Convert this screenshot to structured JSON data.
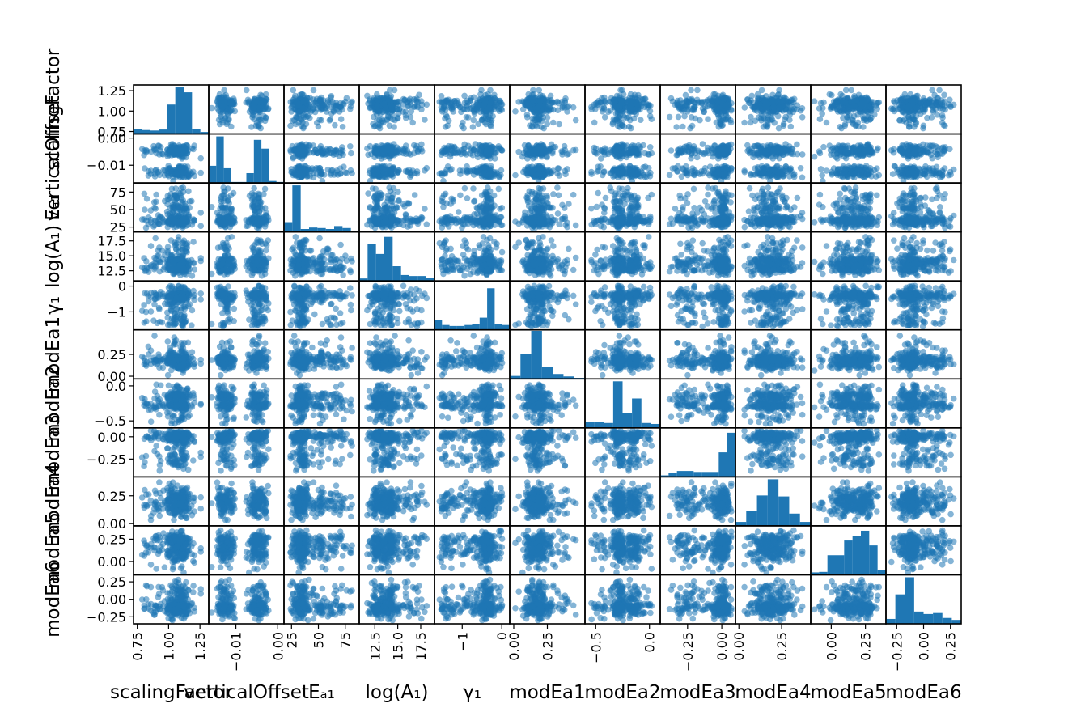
{
  "chart_data": {
    "type": "scatter-matrix",
    "diagonal": "histogram",
    "point_color": "#1f77b4",
    "point_alpha": 0.55,
    "grid": false,
    "legend": "none",
    "variables": [
      {
        "key": "scalingFactor",
        "label": "scalingFactor",
        "range": [
          0.72,
          1.32
        ],
        "ticks": [
          {
            "v": 0.75,
            "t": "0.75"
          },
          {
            "v": 1.0,
            "t": "1.00"
          },
          {
            "v": 1.25,
            "t": "1.25"
          }
        ],
        "hist": [
          0.1,
          0.08,
          0.07,
          0.09,
          0.6,
          0.95,
          0.85,
          0.1,
          0.04
        ]
      },
      {
        "key": "verticalOffset",
        "label": "verticalOffset",
        "range": [
          -0.0165,
          0.0015
        ],
        "ticks": [
          {
            "v": -0.01,
            "t": "−0.01"
          },
          {
            "v": 0.0,
            "t": "0.00"
          }
        ],
        "hist": [
          0.35,
          0.95,
          0.3,
          0.02,
          0.02,
          0.2,
          0.88,
          0.7,
          0.04,
          0.02
        ]
      },
      {
        "key": "Ea1",
        "label": "Eₐ₁",
        "range": [
          18,
          88
        ],
        "ticks": [
          {
            "v": 25,
            "t": "25"
          },
          {
            "v": 50,
            "t": "50"
          },
          {
            "v": 75,
            "t": "75"
          }
        ],
        "hist": [
          0.2,
          0.95,
          0.06,
          0.09,
          0.08,
          0.06,
          0.12,
          0.08,
          0.02
        ]
      },
      {
        "key": "logA1",
        "label": "log(A₁)",
        "range": [
          10.8,
          19.0
        ],
        "ticks": [
          {
            "v": 12.5,
            "t": "12.5"
          },
          {
            "v": 15.0,
            "t": "15.0"
          },
          {
            "v": 17.5,
            "t": "17.5"
          }
        ],
        "hist": [
          0.05,
          0.75,
          0.55,
          0.9,
          0.3,
          0.12,
          0.1,
          0.1,
          0.06
        ]
      },
      {
        "key": "gamma1",
        "label": "γ₁",
        "range": [
          -1.7,
          0.2
        ],
        "ticks": [
          {
            "v": -1,
            "t": "−1"
          },
          {
            "v": 0,
            "t": "0"
          }
        ],
        "hist": [
          0.2,
          0.1,
          0.08,
          0.08,
          0.1,
          0.12,
          0.25,
          0.85,
          0.12,
          0.1
        ]
      },
      {
        "key": "modEa1",
        "label": "modEa1",
        "range": [
          -0.03,
          0.53
        ],
        "ticks": [
          {
            "v": 0.0,
            "t": "0.00"
          },
          {
            "v": 0.25,
            "t": "0.25"
          }
        ],
        "hist": [
          0.06,
          0.5,
          0.98,
          0.25,
          0.1,
          0.05,
          0.02
        ]
      },
      {
        "key": "modEa2",
        "label": "modEa2",
        "range": [
          -0.6,
          0.1
        ],
        "ticks": [
          {
            "v": -0.5,
            "t": "−0.5"
          },
          {
            "v": 0.0,
            "t": "0.0"
          }
        ],
        "hist": [
          0.12,
          0.12,
          0.1,
          0.95,
          0.3,
          0.6,
          0.1,
          0.08
        ]
      },
      {
        "key": "modEa3",
        "label": "modEa3",
        "range": [
          -0.45,
          0.1
        ],
        "ticks": [
          {
            "v": -0.25,
            "t": "−0.25"
          },
          {
            "v": 0.0,
            "t": "0.00"
          }
        ],
        "hist": [
          0.03,
          0.08,
          0.12,
          0.12,
          0.1,
          0.1,
          0.1,
          0.5,
          0.9
        ]
      },
      {
        "key": "modEa4",
        "label": "modEa4",
        "range": [
          -0.02,
          0.42
        ],
        "ticks": [
          {
            "v": 0.0,
            "t": "0.00"
          },
          {
            "v": 0.25,
            "t": "0.25"
          }
        ],
        "hist": [
          0.08,
          0.3,
          0.62,
          0.95,
          0.6,
          0.25,
          0.08
        ]
      },
      {
        "key": "modEa5",
        "label": "modEa5",
        "range": [
          -0.15,
          0.4
        ],
        "ticks": [
          {
            "v": 0.0,
            "t": "0.00"
          },
          {
            "v": 0.25,
            "t": "0.25"
          }
        ],
        "hist": [
          0.05,
          0.06,
          0.4,
          0.4,
          0.7,
          0.8,
          0.9,
          0.6,
          0.1
        ]
      },
      {
        "key": "modEa6",
        "label": "modEa6",
        "range": [
          -0.35,
          0.35
        ],
        "ticks": [
          {
            "v": -0.25,
            "t": "−0.25"
          },
          {
            "v": 0.0,
            "t": "0.00"
          },
          {
            "v": 0.25,
            "t": "0.25"
          }
        ],
        "hist": [
          0.1,
          0.6,
          0.95,
          0.25,
          0.2,
          0.22,
          0.12,
          0.08
        ]
      }
    ]
  }
}
